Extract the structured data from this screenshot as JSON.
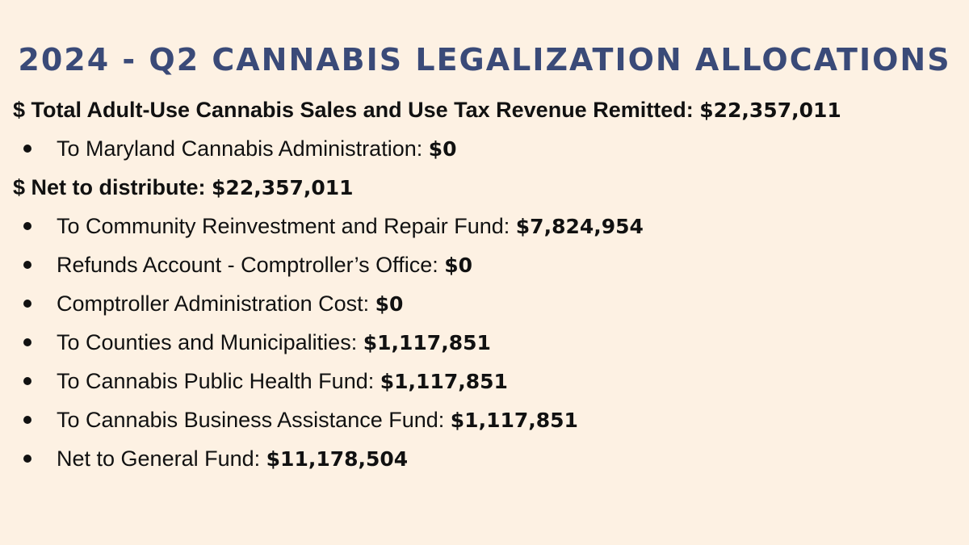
{
  "title": "2024 - Q2 CANNABIS LEGALIZATION ALLOCATIONS",
  "total_revenue": {
    "label": "$ Total Adult-Use Cannabis Sales and Use Tax Revenue Remitted:",
    "value": "$22,357,011"
  },
  "pre_items": [
    {
      "label": "To Maryland Cannabis Administration:",
      "value": "$0"
    }
  ],
  "net_distribute": {
    "label": "$ Net to distribute:",
    "value": "$22,357,011"
  },
  "allocations": [
    {
      "label": "To Community Reinvestment and Repair Fund:",
      "value": "$7,824,954"
    },
    {
      "label": "Refunds Account - Comptroller’s Office:",
      "value": "$0"
    },
    {
      "label": "Comptroller Administration Cost:",
      "value": "$0"
    },
    {
      "label": "To Counties and Municipalities:",
      "value": "$1,117,851"
    },
    {
      "label": "To Cannabis Public Health Fund:",
      "value": "$1,117,851"
    },
    {
      "label": "To Cannabis Business Assistance Fund:",
      "value": "$1,117,851"
    },
    {
      "label": "Net to General Fund:",
      "value": "$11,178,504"
    }
  ],
  "colors": {
    "background": "#fdf1e3",
    "title": "#3a4a78",
    "text": "#111111"
  }
}
